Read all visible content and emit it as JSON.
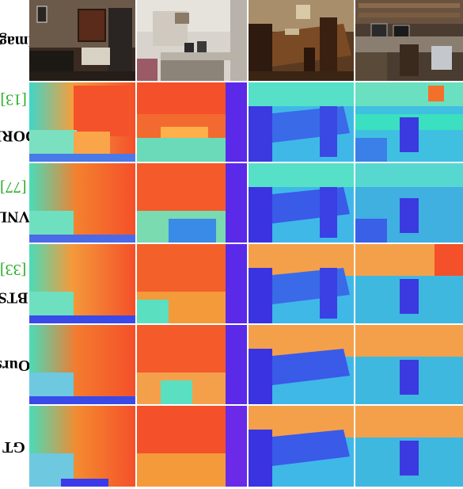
{
  "rows": [
    {
      "label": "Image",
      "cite": "",
      "close": ""
    },
    {
      "label": "DORN ",
      "cite": "[13]",
      "close": ""
    },
    {
      "label": "VNL ",
      "cite": "[77]",
      "close": ""
    },
    {
      "label": "BTS ",
      "cite": "[33]",
      "close": ""
    },
    {
      "label": "Ours",
      "cite": "",
      "close": ""
    },
    {
      "label": "GT",
      "cite": "",
      "close": ""
    }
  ],
  "colormap": {
    "near": "#3b1fe8",
    "mid": "#3fd6c8",
    "far": "#f23a1c"
  },
  "scenes": [
    "bedroom with window and radiator",
    "office room with desk",
    "dining table with chairs",
    "cluttered office with desk and monitors"
  ]
}
